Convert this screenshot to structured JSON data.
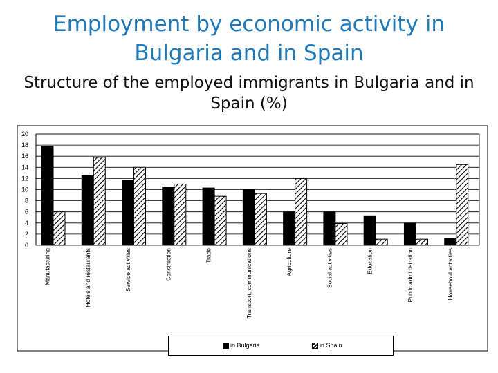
{
  "slide": {
    "title": "Employment by economic activity in Bulgaria and in Spain",
    "subtitle": "Structure of the employed immigrants in Bulgaria and in Spain (%)"
  },
  "chart_data": {
    "type": "bar",
    "title": "",
    "xlabel": "",
    "ylabel": "",
    "ylim": [
      0,
      20
    ],
    "yticks": [
      0,
      2,
      4,
      6,
      8,
      10,
      12,
      14,
      16,
      18,
      20
    ],
    "grid": true,
    "legend_position": "bottom",
    "categories": [
      "Manufacturing",
      "Hotels and restaurants",
      "Service activities",
      "Construction",
      "Trade",
      "Transport, communications",
      "Agriculture",
      "Social activities",
      "Education",
      "Public administration",
      "Household activities"
    ],
    "series": [
      {
        "name": "in Bulgaria",
        "fill": "#000000",
        "values": [
          17.8,
          12.5,
          11.7,
          10.5,
          10.3,
          10.0,
          6.0,
          6.0,
          5.3,
          4.0,
          1.3
        ]
      },
      {
        "name": "in Spain",
        "fill": "hatched",
        "values": [
          6.0,
          15.8,
          14.0,
          11.0,
          8.8,
          9.3,
          12.0,
          3.9,
          1.1,
          1.1,
          14.5
        ]
      }
    ]
  }
}
